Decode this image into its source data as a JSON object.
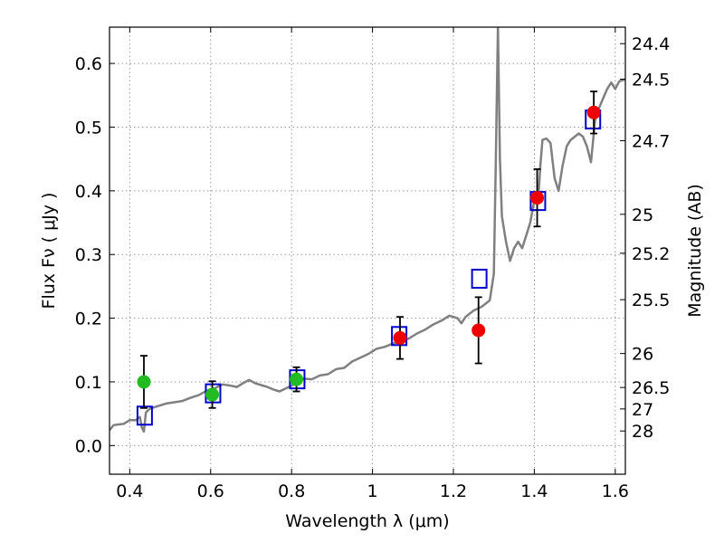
{
  "chart_data": {
    "type": "scatter",
    "xlabel": "Wavelength  λ (μm)",
    "ylabel": "Flux  Fν  ( μJy )",
    "ylabel_right": "Magnitude (AB)",
    "xlim": [
      0.35,
      1.625
    ],
    "ylim": [
      -0.045,
      0.657
    ],
    "grid": true,
    "x_ticks": [
      0.4,
      0.6,
      0.8,
      1.0,
      1.2,
      1.4,
      1.6
    ],
    "x_tick_labels": [
      "0.4",
      "0.6",
      "0.8",
      "1",
      "1.2",
      "1.4",
      "1.6"
    ],
    "y_ticks": [
      0.0,
      0.1,
      0.2,
      0.3,
      0.4,
      0.5,
      0.6
    ],
    "y_tick_labels": [
      "0.0",
      "0.1",
      "0.2",
      "0.3",
      "0.4",
      "0.5",
      "0.6"
    ],
    "right_ticks": [
      {
        "flux": 0.6311,
        "label": "24.4"
      },
      {
        "flux": 0.5754,
        "label": "24.5"
      },
      {
        "flux": 0.4786,
        "label": "24.7"
      },
      {
        "flux": 0.3631,
        "label": "25"
      },
      {
        "flux": 0.302,
        "label": "25.2"
      },
      {
        "flux": 0.2291,
        "label": "25.5"
      },
      {
        "flux": 0.1445,
        "label": "26"
      },
      {
        "flux": 0.0912,
        "label": "26.5"
      },
      {
        "flux": 0.0575,
        "label": "27"
      },
      {
        "flux": 0.0229,
        "label": "28"
      }
    ],
    "colors": {
      "sed": "#808080",
      "model_box": "#0000cc",
      "green_points": "#22bb22",
      "red_points": "#ee0000",
      "errorbar": "#000000",
      "grid": "#999999"
    },
    "sed_curve": [
      [
        0.35,
        0.024
      ],
      [
        0.36,
        0.032
      ],
      [
        0.37,
        0.033
      ],
      [
        0.385,
        0.034
      ],
      [
        0.4,
        0.04
      ],
      [
        0.415,
        0.04
      ],
      [
        0.425,
        0.045
      ],
      [
        0.43,
        0.028
      ],
      [
        0.435,
        0.022
      ],
      [
        0.44,
        0.052
      ],
      [
        0.45,
        0.058
      ],
      [
        0.47,
        0.062
      ],
      [
        0.49,
        0.066
      ],
      [
        0.51,
        0.068
      ],
      [
        0.53,
        0.07
      ],
      [
        0.55,
        0.075
      ],
      [
        0.57,
        0.079
      ],
      [
        0.59,
        0.086
      ],
      [
        0.61,
        0.09
      ],
      [
        0.63,
        0.096
      ],
      [
        0.65,
        0.094
      ],
      [
        0.665,
        0.092
      ],
      [
        0.68,
        0.098
      ],
      [
        0.695,
        0.103
      ],
      [
        0.71,
        0.098
      ],
      [
        0.725,
        0.095
      ],
      [
        0.74,
        0.092
      ],
      [
        0.755,
        0.088
      ],
      [
        0.77,
        0.085
      ],
      [
        0.79,
        0.091
      ],
      [
        0.81,
        0.097
      ],
      [
        0.83,
        0.105
      ],
      [
        0.85,
        0.104
      ],
      [
        0.87,
        0.11
      ],
      [
        0.89,
        0.112
      ],
      [
        0.91,
        0.12
      ],
      [
        0.93,
        0.122
      ],
      [
        0.95,
        0.132
      ],
      [
        0.97,
        0.138
      ],
      [
        0.99,
        0.144
      ],
      [
        1.01,
        0.152
      ],
      [
        1.03,
        0.155
      ],
      [
        1.05,
        0.16
      ],
      [
        1.07,
        0.164
      ],
      [
        1.09,
        0.168
      ],
      [
        1.11,
        0.176
      ],
      [
        1.13,
        0.182
      ],
      [
        1.15,
        0.19
      ],
      [
        1.17,
        0.196
      ],
      [
        1.19,
        0.204
      ],
      [
        1.21,
        0.2
      ],
      [
        1.22,
        0.192
      ],
      [
        1.23,
        0.202
      ],
      [
        1.25,
        0.212
      ],
      [
        1.27,
        0.218
      ],
      [
        1.29,
        0.228
      ],
      [
        1.3,
        0.27
      ],
      [
        1.305,
        0.45
      ],
      [
        1.31,
        0.66
      ],
      [
        1.315,
        0.45
      ],
      [
        1.32,
        0.36
      ],
      [
        1.33,
        0.32
      ],
      [
        1.34,
        0.29
      ],
      [
        1.35,
        0.31
      ],
      [
        1.36,
        0.32
      ],
      [
        1.37,
        0.31
      ],
      [
        1.38,
        0.33
      ],
      [
        1.39,
        0.35
      ],
      [
        1.4,
        0.385
      ],
      [
        1.41,
        0.39
      ],
      [
        1.415,
        0.44
      ],
      [
        1.42,
        0.48
      ],
      [
        1.43,
        0.482
      ],
      [
        1.44,
        0.475
      ],
      [
        1.45,
        0.42
      ],
      [
        1.46,
        0.4
      ],
      [
        1.47,
        0.44
      ],
      [
        1.48,
        0.47
      ],
      [
        1.49,
        0.48
      ],
      [
        1.5,
        0.485
      ],
      [
        1.51,
        0.49
      ],
      [
        1.52,
        0.485
      ],
      [
        1.53,
        0.47
      ],
      [
        1.54,
        0.445
      ],
      [
        1.55,
        0.51
      ],
      [
        1.56,
        0.53
      ],
      [
        1.57,
        0.545
      ],
      [
        1.58,
        0.56
      ],
      [
        1.59,
        0.57
      ],
      [
        1.6,
        0.56
      ],
      [
        1.61,
        0.572
      ],
      [
        1.625,
        0.575
      ]
    ],
    "model_boxes": [
      {
        "x": 0.437,
        "y": 0.047
      },
      {
        "x": 0.606,
        "y": 0.082
      },
      {
        "x": 0.814,
        "y": 0.104
      },
      {
        "x": 1.066,
        "y": 0.172
      },
      {
        "x": 1.264,
        "y": 0.262
      },
      {
        "x": 1.409,
        "y": 0.384
      },
      {
        "x": 1.545,
        "y": 0.512
      }
    ],
    "green_points": [
      {
        "x": 0.435,
        "y": 0.1,
        "err": 0.041
      },
      {
        "x": 0.604,
        "y": 0.08,
        "err": 0.021
      },
      {
        "x": 0.812,
        "y": 0.104,
        "err": 0.019
      }
    ],
    "red_points": [
      {
        "x": 1.068,
        "y": 0.169,
        "err": 0.033
      },
      {
        "x": 1.262,
        "y": 0.181,
        "err": 0.052
      },
      {
        "x": 1.407,
        "y": 0.389,
        "err": 0.045
      },
      {
        "x": 1.547,
        "y": 0.523,
        "err": 0.033
      }
    ]
  }
}
